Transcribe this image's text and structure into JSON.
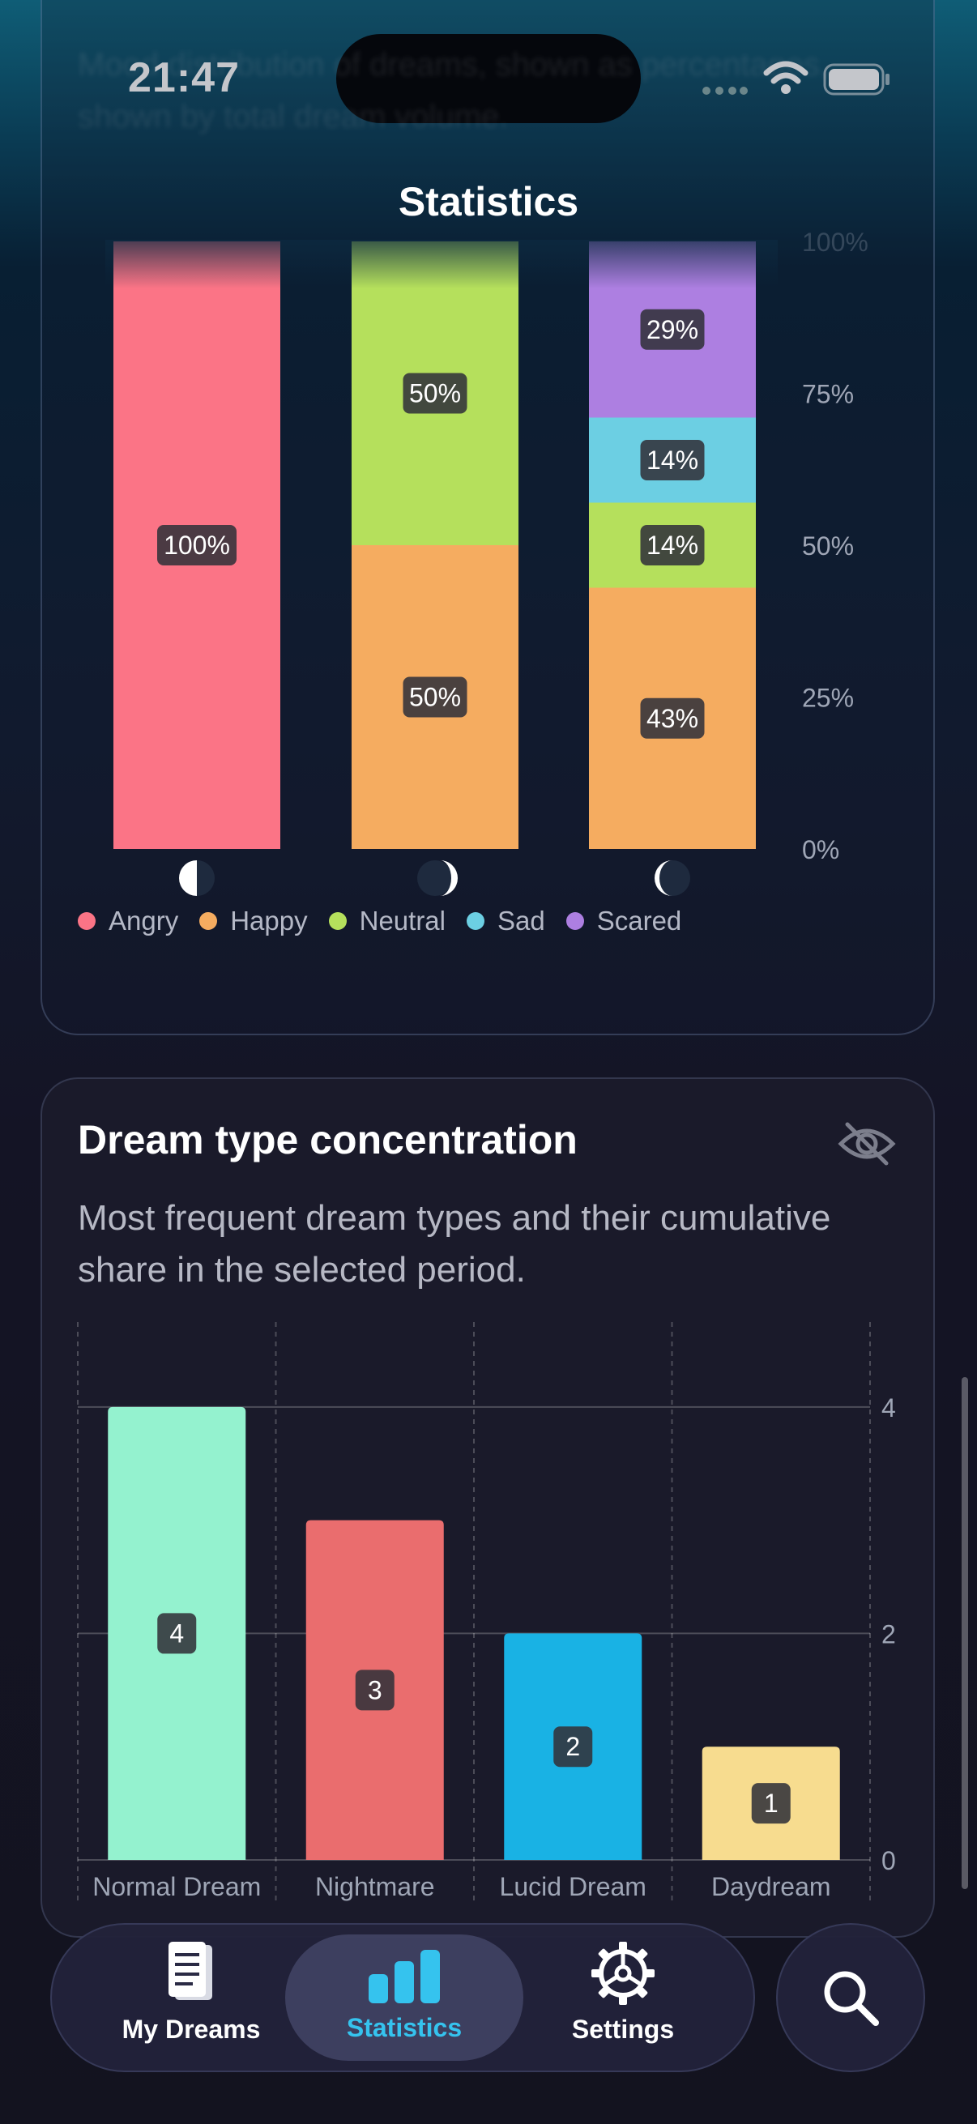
{
  "status_bar": {
    "time": "21:47"
  },
  "header": {
    "title": "Statistics",
    "faded_text": "Mood distribution of dreams, shown as percentages, shown by total dream volume."
  },
  "mood_chart": {
    "legend": [
      {
        "label": "Angry",
        "color": "#fb7486"
      },
      {
        "label": "Happy",
        "color": "#f5ac60"
      },
      {
        "label": "Neutral",
        "color": "#b5e05c"
      },
      {
        "label": "Sad",
        "color": "#6ccfe3"
      },
      {
        "label": "Scared",
        "color": "#ad7fe1"
      }
    ],
    "y_ticks": [
      "100%",
      "75%",
      "50%",
      "25%",
      "0%"
    ]
  },
  "concentration_card": {
    "title": "Dream type concentration",
    "description": "Most frequent dream types and their cumulative share in the selected period."
  },
  "tabs": {
    "dreams": "My Dreams",
    "statistics": "Statistics",
    "settings": "Settings"
  },
  "chart_data": [
    {
      "type": "bar",
      "stacked": true,
      "categories": [
        "waning-moon",
        "full-moon",
        "waxing-moon"
      ],
      "ylim": [
        0,
        100
      ],
      "y_unit": "%",
      "y_ticks": [
        0,
        25,
        50,
        75,
        100
      ],
      "series": [
        {
          "name": "Angry",
          "color": "#fb7486",
          "values": [
            100,
            0,
            0
          ]
        },
        {
          "name": "Happy",
          "color": "#f5ac60",
          "values": [
            0,
            50,
            43
          ]
        },
        {
          "name": "Neutral",
          "color": "#b5e05c",
          "values": [
            0,
            50,
            14
          ]
        },
        {
          "name": "Sad",
          "color": "#6ccfe3",
          "values": [
            0,
            0,
            14
          ]
        },
        {
          "name": "Scared",
          "color": "#ad7fe1",
          "values": [
            0,
            0,
            29
          ]
        }
      ],
      "legend_position": "bottom",
      "grid": false
    },
    {
      "type": "bar",
      "categories": [
        "Normal Dream",
        "Nightmare",
        "Lucid Dream",
        "Daydream"
      ],
      "values": [
        4,
        3,
        2,
        1
      ],
      "colors": [
        "#94f2cf",
        "#ea6d6e",
        "#19b2e4",
        "#f7dc8f"
      ],
      "ylim": [
        0,
        4.75
      ],
      "y_ticks": [
        0,
        2,
        4
      ],
      "grid": true,
      "y_axis_position": "right"
    }
  ]
}
